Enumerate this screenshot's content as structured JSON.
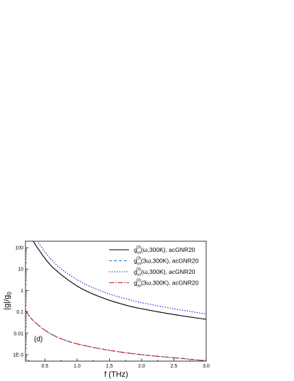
{
  "chart_data": {
    "type": "line",
    "title": "",
    "xlabel": "f (THz)",
    "ylabel_main": "|g|/g",
    "ylabel_sub": "0",
    "panel_label": "(d)",
    "xlim": [
      0.2,
      3.0
    ],
    "ylim": [
      0.0005,
      200
    ],
    "y_scale": "log",
    "grid": false,
    "legend_position": "top-right",
    "x_ticks": [
      0.5,
      1.0,
      1.5,
      2.0,
      2.5,
      3.0
    ],
    "x_tick_labels": [
      "0.5",
      "1.0",
      "1.5",
      "2.0",
      "2.5",
      "3.0"
    ],
    "y_ticks": [
      0.001,
      0.01,
      0.1,
      1,
      10,
      100
    ],
    "y_tick_labels": [
      "1E-3",
      "0.01",
      "0.1",
      "1",
      "10",
      "100"
    ],
    "series": [
      {
        "legend_main": "g",
        "legend_sub": "yx",
        "legend_sup": "(3)",
        "legend_rest": "(ω,300K), acGNR20",
        "color": "#000000",
        "dash": "",
        "x": [
          0.32,
          0.4,
          0.5,
          0.6,
          0.7,
          0.8,
          1.0,
          1.2,
          1.5,
          1.8,
          2.0,
          2.5,
          3.0
        ],
        "y": [
          200,
          85,
          32,
          14,
          7.5,
          4.2,
          1.6,
          0.78,
          0.35,
          0.19,
          0.14,
          0.075,
          0.045
        ]
      },
      {
        "legend_main": "g",
        "legend_sub": "yx",
        "legend_sup": "(3)",
        "legend_rest": "(3ω,300K), acGNR20",
        "color": "#1a6fd1",
        "dash": "4,3",
        "x": [
          0.2,
          0.3,
          0.5,
          0.7,
          1.0,
          1.5,
          2.0,
          2.5,
          3.0
        ],
        "y": [
          0.12,
          0.045,
          0.014,
          0.0065,
          0.0032,
          0.0016,
          0.001,
          0.00072,
          0.00052
        ]
      },
      {
        "legend_main": "g",
        "legend_sub": "yz",
        "legend_sup": "(3)",
        "legend_rest": "(ω,300K), acGNR20",
        "color": "#1414cc",
        "dash": "1.5,2",
        "x": [
          0.4,
          0.5,
          0.6,
          0.7,
          0.8,
          1.0,
          1.2,
          1.5,
          1.8,
          2.0,
          2.5,
          3.0
        ],
        "y": [
          170,
          65,
          28,
          14,
          8,
          3.2,
          1.55,
          0.68,
          0.38,
          0.27,
          0.14,
          0.08
        ]
      },
      {
        "legend_main": "g",
        "legend_sub": "yy",
        "legend_sup": "(3)",
        "legend_rest": "(3ω,300K), acGNR20",
        "color": "#cc1414",
        "dash": "7,2,1.5,2",
        "x": [
          0.2,
          0.3,
          0.5,
          0.7,
          1.0,
          1.5,
          2.0,
          2.5,
          3.0
        ],
        "y": [
          0.12,
          0.045,
          0.014,
          0.0065,
          0.0032,
          0.0016,
          0.001,
          0.00072,
          0.00052
        ]
      }
    ]
  }
}
